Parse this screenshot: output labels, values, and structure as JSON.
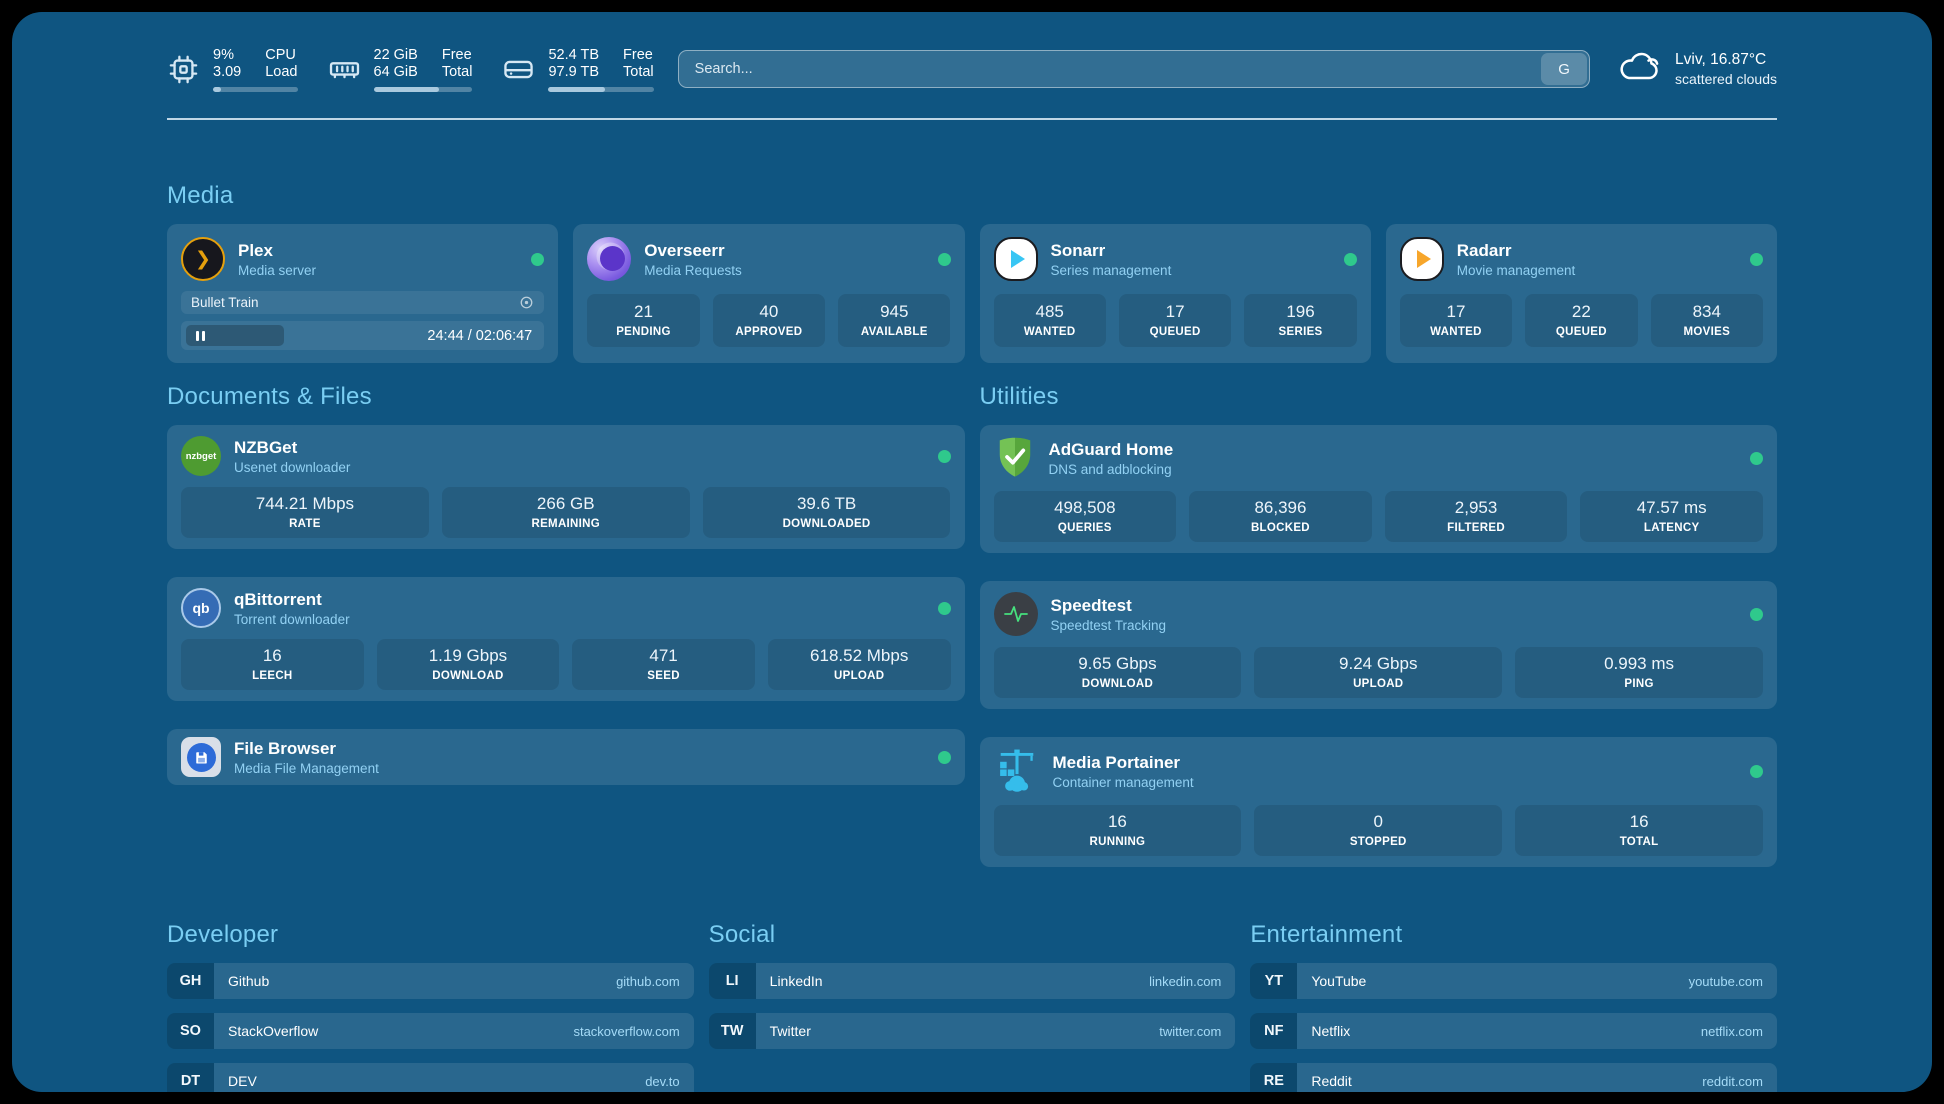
{
  "theme": {
    "background": "#000000",
    "panel": "#0F5581",
    "accent": "#7ACEF3",
    "status_ok": "#2FC98C",
    "link": "#A5DBF7",
    "plex_gold": "#E5A00D"
  },
  "icons": {
    "plex_glyph": "❯"
  },
  "topbar": {
    "cpu": {
      "icon": "cpu-chip-icon",
      "values": [
        "9%",
        "3.09"
      ],
      "labels": [
        "CPU",
        "Load"
      ],
      "progress_pct": 9
    },
    "memory": {
      "icon": "memory-icon",
      "values": [
        "22 GiB",
        "64 GiB"
      ],
      "labels": [
        "Free",
        "Total"
      ],
      "progress_pct": 66
    },
    "disk": {
      "icon": "hard-drive-icon",
      "values": [
        "52.4 TB",
        "97.9 TB"
      ],
      "labels": [
        "Free",
        "Total"
      ],
      "progress_pct": 54
    },
    "search": {
      "placeholder": "Search...",
      "engine_button": "G"
    },
    "weather": {
      "icon": "cloud-icon",
      "location": "Lviv, 16.87°C",
      "condition": "scattered clouds"
    }
  },
  "sections": {
    "media": "Media",
    "documents": "Documents & Files",
    "utilities": "Utilities",
    "developer": "Developer",
    "social": "Social",
    "entertainment": "Entertainment"
  },
  "services": {
    "plex": {
      "name": "Plex",
      "desc": "Media server",
      "now_playing": "Bullet Train",
      "time": "24:44 / 02:06:47"
    },
    "overseerr": {
      "name": "Overseerr",
      "desc": "Media Requests",
      "stats": [
        {
          "value": "21",
          "label": "PENDING"
        },
        {
          "value": "40",
          "label": "APPROVED"
        },
        {
          "value": "945",
          "label": "AVAILABLE"
        }
      ]
    },
    "sonarr": {
      "name": "Sonarr",
      "desc": "Series management",
      "stats": [
        {
          "value": "485",
          "label": "WANTED"
        },
        {
          "value": "17",
          "label": "QUEUED"
        },
        {
          "value": "196",
          "label": "SERIES"
        }
      ]
    },
    "radarr": {
      "name": "Radarr",
      "desc": "Movie management",
      "stats": [
        {
          "value": "17",
          "label": "WANTED"
        },
        {
          "value": "22",
          "label": "QUEUED"
        },
        {
          "value": "834",
          "label": "MOVIES"
        }
      ]
    },
    "nzbget": {
      "name": "NZBGet",
      "desc": "Usenet downloader",
      "icon_text": "nzbget",
      "stats": [
        {
          "value": "744.21 Mbps",
          "label": "RATE"
        },
        {
          "value": "266 GB",
          "label": "REMAINING"
        },
        {
          "value": "39.6 TB",
          "label": "DOWNLOADED"
        }
      ]
    },
    "qbittorrent": {
      "name": "qBittorrent",
      "desc": "Torrent downloader",
      "icon_text": "qb",
      "stats": [
        {
          "value": "16",
          "label": "LEECH"
        },
        {
          "value": "1.19 Gbps",
          "label": "DOWNLOAD"
        },
        {
          "value": "471",
          "label": "SEED"
        },
        {
          "value": "618.52 Mbps",
          "label": "UPLOAD"
        }
      ]
    },
    "filebrowser": {
      "name": "File Browser",
      "desc": "Media File Management"
    },
    "adguard": {
      "name": "AdGuard Home",
      "desc": "DNS and adblocking",
      "stats": [
        {
          "value": "498,508",
          "label": "QUERIES"
        },
        {
          "value": "86,396",
          "label": "BLOCKED"
        },
        {
          "value": "2,953",
          "label": "FILTERED"
        },
        {
          "value": "47.57 ms",
          "label": "LATENCY"
        }
      ]
    },
    "speedtest": {
      "name": "Speedtest",
      "desc": "Speedtest Tracking",
      "stats": [
        {
          "value": "9.65 Gbps",
          "label": "DOWNLOAD"
        },
        {
          "value": "9.24 Gbps",
          "label": "UPLOAD"
        },
        {
          "value": "0.993 ms",
          "label": "PING"
        }
      ]
    },
    "portainer": {
      "name": "Media Portainer",
      "desc": "Container management",
      "stats": [
        {
          "value": "16",
          "label": "RUNNING"
        },
        {
          "value": "0",
          "label": "STOPPED"
        },
        {
          "value": "16",
          "label": "TOTAL"
        }
      ]
    }
  },
  "bookmarks": {
    "developer": [
      {
        "abbr": "GH",
        "name": "Github",
        "url": "github.com"
      },
      {
        "abbr": "SO",
        "name": "StackOverflow",
        "url": "stackoverflow.com"
      },
      {
        "abbr": "DT",
        "name": "DEV",
        "url": "dev.to"
      }
    ],
    "social": [
      {
        "abbr": "LI",
        "name": "LinkedIn",
        "url": "linkedin.com"
      },
      {
        "abbr": "TW",
        "name": "Twitter",
        "url": "twitter.com"
      }
    ],
    "entertainment": [
      {
        "abbr": "YT",
        "name": "YouTube",
        "url": "youtube.com"
      },
      {
        "abbr": "NF",
        "name": "Netflix",
        "url": "netflix.com"
      },
      {
        "abbr": "RE",
        "name": "Reddit",
        "url": "reddit.com"
      }
    ]
  }
}
